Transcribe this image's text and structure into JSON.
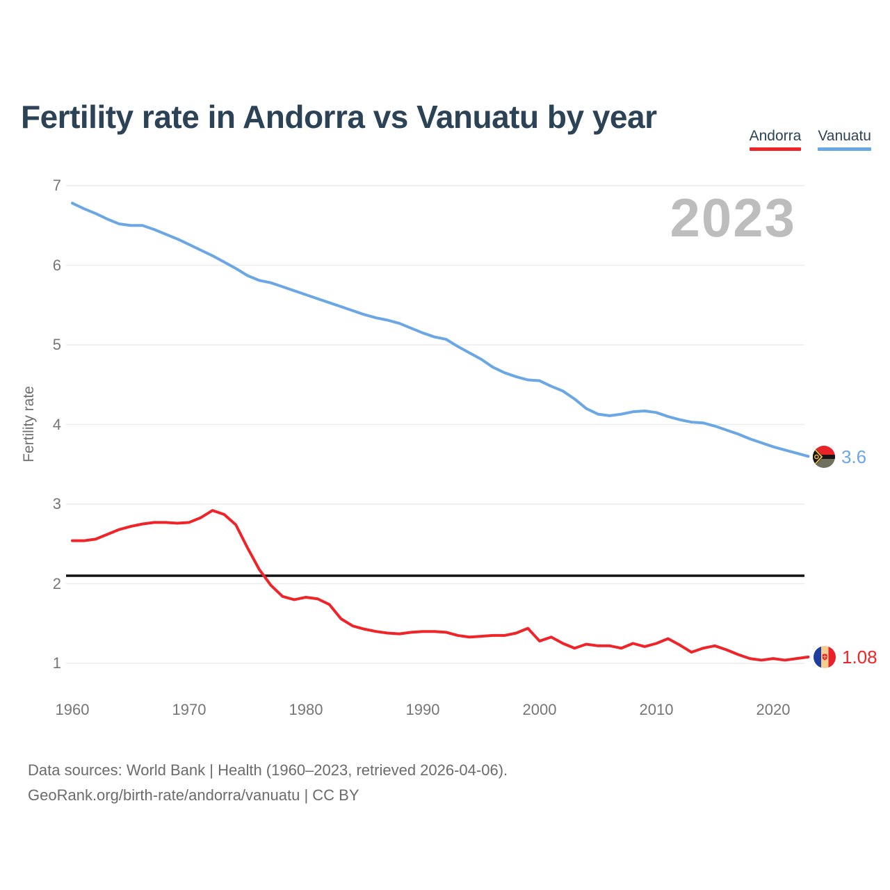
{
  "title": "Fertility rate in Andorra vs Vanuatu by year",
  "watermark": "2023",
  "legend": [
    {
      "label": "Andorra",
      "color": "#ee2428"
    },
    {
      "label": "Vanuatu",
      "color": "#6aa7e4"
    }
  ],
  "y_axis": {
    "label": "Fertility rate",
    "ticks": [
      7,
      6,
      5,
      4,
      3,
      2,
      1
    ]
  },
  "x_axis": {
    "ticks": [
      1960,
      1970,
      1980,
      1990,
      2000,
      2010,
      2020
    ]
  },
  "end_labels": [
    {
      "series": "Vanuatu",
      "value": "3.6",
      "flag": "vanuatu-flag-icon"
    },
    {
      "series": "Andorra",
      "value": "1.08",
      "flag": "andorra-flag-icon"
    }
  ],
  "footer": {
    "line1": "Data sources: World Bank | Health (1960–2023, retrieved 2026-04-06).",
    "line2": "GeoRank.org/birth-rate/andorra/vanuatu | CC BY"
  },
  "chart_data": {
    "type": "line",
    "title": "Fertility rate in Andorra vs Vanuatu by year",
    "xlabel": "",
    "ylabel": "Fertility rate",
    "x_range": [
      1960,
      2023
    ],
    "ylim": [
      1,
      7
    ],
    "grid": "horizontal",
    "legend_position": "top-right",
    "reference_line_y": 2.1,
    "reference_line_color": "#111111",
    "x": [
      1960,
      1961,
      1962,
      1963,
      1964,
      1965,
      1966,
      1967,
      1968,
      1969,
      1970,
      1971,
      1972,
      1973,
      1974,
      1975,
      1976,
      1977,
      1978,
      1979,
      1980,
      1981,
      1982,
      1983,
      1984,
      1985,
      1986,
      1987,
      1988,
      1989,
      1990,
      1991,
      1992,
      1993,
      1994,
      1995,
      1996,
      1997,
      1998,
      1999,
      2000,
      2001,
      2002,
      2003,
      2004,
      2005,
      2006,
      2007,
      2008,
      2009,
      2010,
      2011,
      2012,
      2013,
      2014,
      2015,
      2016,
      2017,
      2018,
      2019,
      2020,
      2021,
      2022,
      2023
    ],
    "series": [
      {
        "name": "Vanuatu",
        "color": "#6aa7e4",
        "values": [
          6.78,
          6.71,
          6.65,
          6.58,
          6.52,
          6.5,
          6.5,
          6.45,
          6.39,
          6.33,
          6.26,
          6.19,
          6.12,
          6.04,
          5.96,
          5.87,
          5.81,
          5.78,
          5.73,
          5.68,
          5.63,
          5.58,
          5.53,
          5.48,
          5.43,
          5.38,
          5.34,
          5.31,
          5.27,
          5.21,
          5.15,
          5.1,
          5.07,
          4.98,
          4.9,
          4.82,
          4.72,
          4.65,
          4.6,
          4.56,
          4.55,
          4.48,
          4.42,
          4.32,
          4.2,
          4.13,
          4.11,
          4.13,
          4.16,
          4.17,
          4.15,
          4.1,
          4.06,
          4.03,
          4.02,
          3.98,
          3.93,
          3.88,
          3.82,
          3.77,
          3.72,
          3.68,
          3.64,
          3.6
        ],
        "end_label": "3.6"
      },
      {
        "name": "Andorra",
        "color": "#ee2428",
        "values": [
          2.54,
          2.54,
          2.56,
          2.62,
          2.68,
          2.72,
          2.75,
          2.77,
          2.77,
          2.76,
          2.77,
          2.83,
          2.92,
          2.87,
          2.74,
          2.45,
          2.18,
          1.98,
          1.84,
          1.8,
          1.83,
          1.81,
          1.74,
          1.56,
          1.47,
          1.43,
          1.4,
          1.38,
          1.37,
          1.39,
          1.4,
          1.4,
          1.39,
          1.35,
          1.33,
          1.34,
          1.35,
          1.35,
          1.38,
          1.44,
          1.28,
          1.33,
          1.25,
          1.19,
          1.24,
          1.22,
          1.22,
          1.19,
          1.25,
          1.21,
          1.25,
          1.31,
          1.23,
          1.14,
          1.19,
          1.22,
          1.17,
          1.11,
          1.06,
          1.04,
          1.06,
          1.04,
          1.06,
          1.08
        ],
        "end_label": "1.08"
      }
    ]
  }
}
